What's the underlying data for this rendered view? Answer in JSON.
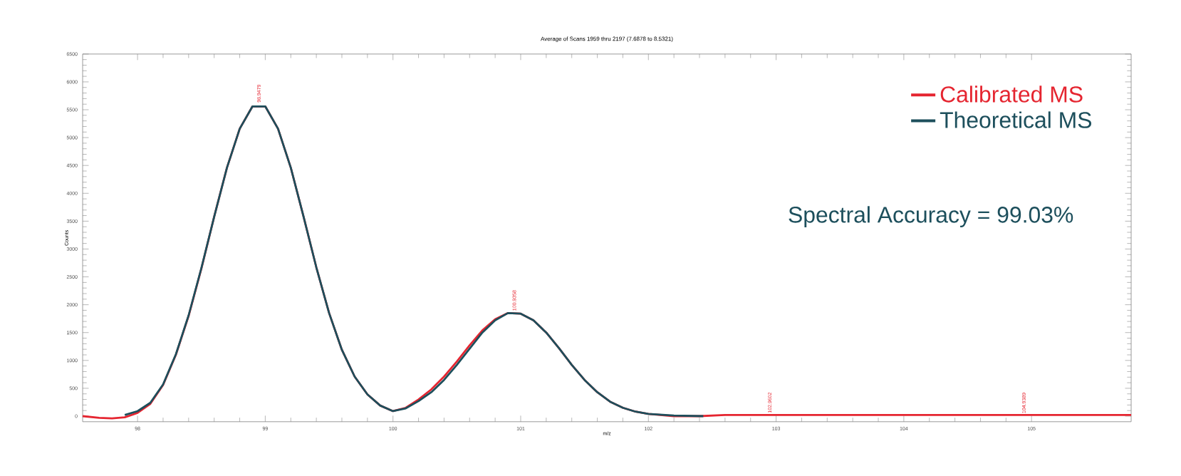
{
  "chart_data": {
    "type": "line",
    "title": "Average of Scans 1959 thru 2197 (7.6878 to 8.5321)",
    "xlabel": "m/z",
    "ylabel": "Counts",
    "xlim": [
      97.57,
      105.78
    ],
    "xticks": [
      98,
      99,
      100,
      101,
      102,
      103,
      104,
      105
    ],
    "ylim": [
      -100,
      6500
    ],
    "yticks": [
      0,
      500,
      1000,
      1500,
      2000,
      2500,
      3000,
      3500,
      4000,
      4500,
      5000,
      5500,
      6000,
      6500
    ],
    "legend": "top right",
    "grid": false,
    "series": [
      {
        "name": "Calibrated MS",
        "color": "#e52530",
        "x": [
          97.57,
          97.7,
          97.8,
          97.9,
          98.0,
          98.1,
          98.2,
          98.3,
          98.4,
          98.5,
          98.6,
          98.7,
          98.8,
          98.9,
          99.0,
          99.1,
          99.2,
          99.3,
          99.4,
          99.5,
          99.6,
          99.7,
          99.8,
          99.9,
          100.0,
          100.1,
          100.2,
          100.3,
          100.4,
          100.5,
          100.6,
          100.7,
          100.8,
          100.9,
          101.0,
          101.1,
          101.2,
          101.3,
          101.4,
          101.5,
          101.6,
          101.7,
          101.8,
          101.9,
          102.0,
          102.2,
          102.4,
          102.6,
          103.0,
          103.5,
          104.0,
          104.5,
          105.0,
          105.78
        ],
        "values": [
          0,
          -30,
          -40,
          -20,
          60,
          220,
          560,
          1100,
          1800,
          2650,
          3580,
          4460,
          5160,
          5560,
          5560,
          5160,
          4460,
          3580,
          2670,
          1850,
          1190,
          710,
          390,
          190,
          90,
          150,
          300,
          480,
          710,
          980,
          1270,
          1540,
          1740,
          1850,
          1840,
          1720,
          1500,
          1220,
          920,
          650,
          430,
          260,
          150,
          80,
          40,
          0,
          0,
          20,
          20,
          20,
          20,
          20,
          20,
          20
        ]
      },
      {
        "name": "Theoretical MS",
        "color": "#1d4f5c",
        "x": [
          97.9,
          98.0,
          98.1,
          98.2,
          98.3,
          98.4,
          98.5,
          98.6,
          98.7,
          98.8,
          98.9,
          99.0,
          99.1,
          99.2,
          99.3,
          99.4,
          99.5,
          99.6,
          99.7,
          99.8,
          99.9,
          100.0,
          100.1,
          100.2,
          100.3,
          100.4,
          100.5,
          100.6,
          100.7,
          100.8,
          100.9,
          101.0,
          101.1,
          101.2,
          101.3,
          101.4,
          101.5,
          101.6,
          101.7,
          101.8,
          101.9,
          102.0,
          102.2,
          102.43
        ],
        "values": [
          20,
          90,
          240,
          570,
          1110,
          1810,
          2660,
          3580,
          4460,
          5160,
          5560,
          5560,
          5160,
          4460,
          3580,
          2670,
          1850,
          1190,
          710,
          390,
          190,
          90,
          140,
          270,
          430,
          650,
          920,
          1210,
          1500,
          1720,
          1850,
          1840,
          1720,
          1500,
          1220,
          920,
          650,
          430,
          260,
          150,
          80,
          40,
          10,
          0
        ]
      }
    ],
    "annotations": [
      {
        "text": "98.9479",
        "x": 98.95,
        "y": 5600
      },
      {
        "text": "100.9358",
        "x": 100.95,
        "y": 1860
      },
      {
        "text": "102.9602",
        "x": 102.95,
        "y": 25
      },
      {
        "text": "104.9389",
        "x": 104.94,
        "y": 20
      },
      "Spectral Accuracy = 99.03%"
    ]
  }
}
